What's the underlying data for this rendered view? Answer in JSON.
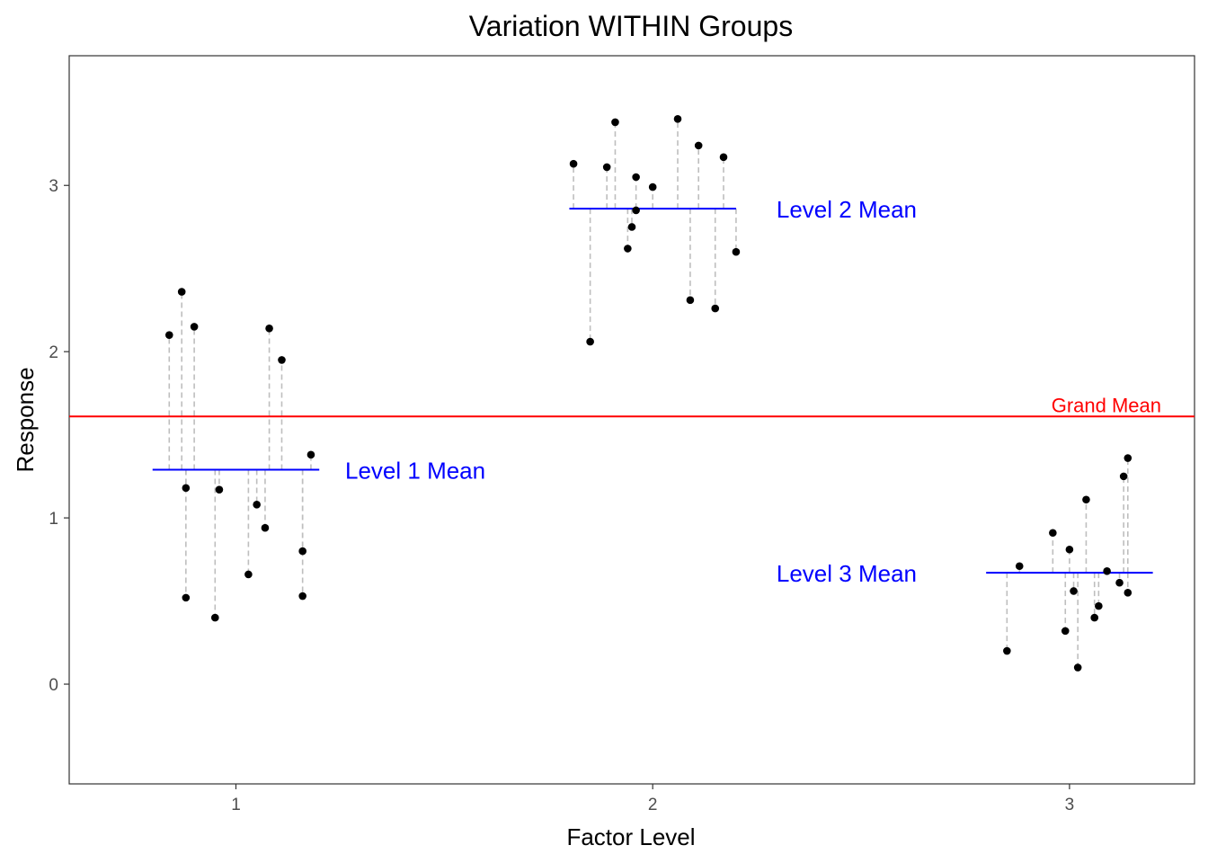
{
  "chart_data": {
    "type": "scatter",
    "title": "Variation WITHIN Groups",
    "xlabel": "Factor Level",
    "ylabel": "Response",
    "x_ticks": [
      "1",
      "2",
      "3"
    ],
    "y_ticks": [
      "0",
      "1",
      "2",
      "3"
    ],
    "xlim": [
      0.6,
      3.3
    ],
    "ylim": [
      -0.6,
      3.78
    ],
    "grid": false,
    "grand_mean": 1.61,
    "grand_mean_label": "Grand Mean",
    "colors": {
      "points": "#000000",
      "group_mean": "#0000ff",
      "grand_mean": "#ff0000",
      "residual": "#bebebe"
    },
    "groups": [
      {
        "level": 1,
        "mean": 1.29,
        "mean_label": "Level 1 Mean",
        "points": [
          {
            "x": 0.84,
            "y": 2.1
          },
          {
            "x": 0.87,
            "y": 2.36
          },
          {
            "x": 0.88,
            "y": 0.52
          },
          {
            "x": 0.88,
            "y": 1.18
          },
          {
            "x": 0.9,
            "y": 2.15
          },
          {
            "x": 0.95,
            "y": 0.4
          },
          {
            "x": 0.96,
            "y": 1.17
          },
          {
            "x": 1.03,
            "y": 0.66
          },
          {
            "x": 1.05,
            "y": 1.08
          },
          {
            "x": 1.07,
            "y": 0.94
          },
          {
            "x": 1.08,
            "y": 2.14
          },
          {
            "x": 1.11,
            "y": 1.95
          },
          {
            "x": 1.16,
            "y": 0.53
          },
          {
            "x": 1.16,
            "y": 0.8
          },
          {
            "x": 1.18,
            "y": 1.38
          }
        ]
      },
      {
        "level": 2,
        "mean": 2.86,
        "mean_label": "Level 2 Mean",
        "points": [
          {
            "x": 1.81,
            "y": 3.13
          },
          {
            "x": 1.85,
            "y": 2.06
          },
          {
            "x": 1.89,
            "y": 3.11
          },
          {
            "x": 1.91,
            "y": 3.38
          },
          {
            "x": 1.94,
            "y": 2.62
          },
          {
            "x": 1.95,
            "y": 2.75
          },
          {
            "x": 1.96,
            "y": 3.05
          },
          {
            "x": 1.96,
            "y": 2.85
          },
          {
            "x": 2.0,
            "y": 2.99
          },
          {
            "x": 2.06,
            "y": 3.4
          },
          {
            "x": 2.09,
            "y": 2.31
          },
          {
            "x": 2.11,
            "y": 3.24
          },
          {
            "x": 2.15,
            "y": 2.26
          },
          {
            "x": 2.17,
            "y": 3.17
          },
          {
            "x": 2.2,
            "y": 2.6
          }
        ]
      },
      {
        "level": 3,
        "mean": 0.67,
        "mean_label": "Level 3 Mean",
        "points": [
          {
            "x": 2.85,
            "y": 0.2
          },
          {
            "x": 2.88,
            "y": 0.71
          },
          {
            "x": 2.96,
            "y": 0.91
          },
          {
            "x": 2.99,
            "y": 0.32
          },
          {
            "x": 3.0,
            "y": 0.81
          },
          {
            "x": 3.01,
            "y": 0.56
          },
          {
            "x": 3.02,
            "y": 0.1
          },
          {
            "x": 3.04,
            "y": 1.11
          },
          {
            "x": 3.06,
            "y": 0.4
          },
          {
            "x": 3.07,
            "y": 0.47
          },
          {
            "x": 3.09,
            "y": 0.68
          },
          {
            "x": 3.12,
            "y": 0.61
          },
          {
            "x": 3.13,
            "y": 1.25
          },
          {
            "x": 3.14,
            "y": 1.36
          },
          {
            "x": 3.14,
            "y": 0.55
          }
        ]
      }
    ]
  }
}
